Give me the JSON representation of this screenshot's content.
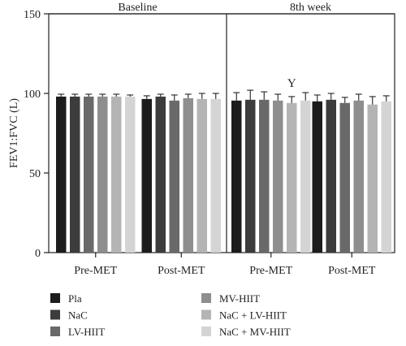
{
  "chart_data": {
    "type": "bar",
    "ylabel": "FEV1:FVC (L)",
    "ylim": [
      0,
      150
    ],
    "yticks": [
      0,
      50,
      100,
      150
    ],
    "panels": [
      {
        "title": "Baseline",
        "groups": [
          {
            "label": "Pre-MET",
            "values": [
              98,
              98,
              98,
              98,
              98,
              98
            ],
            "errors": [
              1.5,
              1.5,
              1.5,
              1.5,
              1.5,
              1
            ]
          },
          {
            "label": "Post-MET",
            "values": [
              96.5,
              98,
              95.5,
              97,
              96.5,
              96.5
            ],
            "errors": [
              2,
              1.5,
              3.5,
              2.5,
              3.5,
              3.5
            ]
          }
        ]
      },
      {
        "title": "8th week",
        "groups": [
          {
            "label": "Pre-MET",
            "values": [
              95.5,
              96,
              96,
              95.5,
              94,
              95.5
            ],
            "errors": [
              5,
              6,
              5,
              4,
              4,
              5
            ],
            "annotation": {
              "text": "Y",
              "series_index": 4
            }
          },
          {
            "label": "Post-MET",
            "values": [
              95,
              96,
              94,
              95.5,
              93,
              95
            ],
            "errors": [
              4,
              4,
              3.5,
              4,
              5,
              3.5
            ]
          }
        ]
      }
    ],
    "series": [
      {
        "name": "Pla",
        "color": "#1c1c1c"
      },
      {
        "name": "NaC",
        "color": "#3c3c3c"
      },
      {
        "name": "LV-HIIT",
        "color": "#696969"
      },
      {
        "name": "MV-HIIT",
        "color": "#8e8e8e"
      },
      {
        "name": "NaC + LV-HIIT",
        "color": "#b4b4b4"
      },
      {
        "name": "NaC + MV-HIIT",
        "color": "#d4d4d4"
      }
    ],
    "legend_position": "bottom",
    "grid": false
  }
}
